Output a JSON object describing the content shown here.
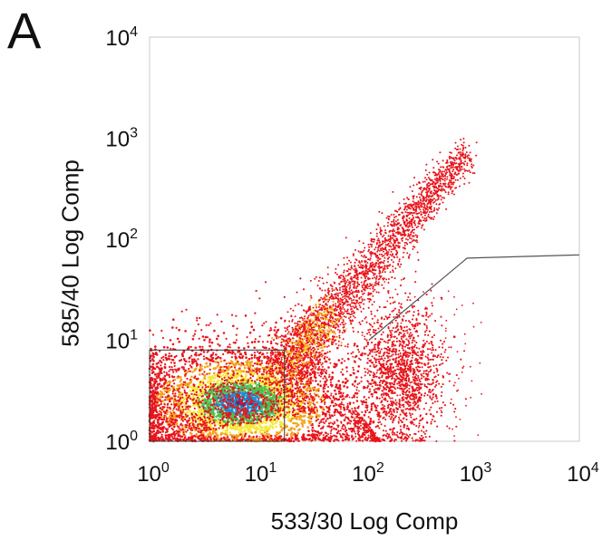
{
  "panel_label": "A",
  "chart_data": {
    "type": "scatter",
    "title": "",
    "xlabel": "533/30 Log Comp",
    "ylabel": "585/40 Log Comp",
    "x_scale": "log",
    "y_scale": "log",
    "xlim": [
      1,
      10000
    ],
    "ylim": [
      1,
      10000
    ],
    "x_ticks": [
      1,
      10,
      100,
      1000,
      10000
    ],
    "y_ticks": [
      1,
      10,
      100,
      1000,
      10000
    ],
    "grid": false,
    "legend": "none",
    "colormap": [
      "#e8151b",
      "#f4a21e",
      "#f7e83a",
      "#4fbf4f",
      "#1c8fd0",
      "#1d3f9a"
    ],
    "populations": [
      {
        "label": "negative cluster",
        "center": [
          7,
          2.4
        ],
        "spread_decades": [
          0.55,
          0.3
        ],
        "density": "very high"
      },
      {
        "label": "diagonal double-positive streak",
        "from": [
          20,
          6
        ],
        "to": [
          900,
          700
        ],
        "density": "high"
      },
      {
        "label": "533/30-positive cluster",
        "center": [
          220,
          4.5
        ],
        "spread_decades": [
          0.2,
          0.35
        ],
        "density": "medium"
      }
    ],
    "gates": [
      {
        "name": "gate-negative",
        "shape": "rectangle",
        "x": [
          1,
          18
        ],
        "y": [
          1,
          8
        ]
      },
      {
        "name": "gate-positive",
        "shape": "polygon",
        "points": [
          [
            110,
            10
          ],
          [
            900,
            65
          ],
          [
            10000,
            70
          ]
        ]
      }
    ]
  }
}
